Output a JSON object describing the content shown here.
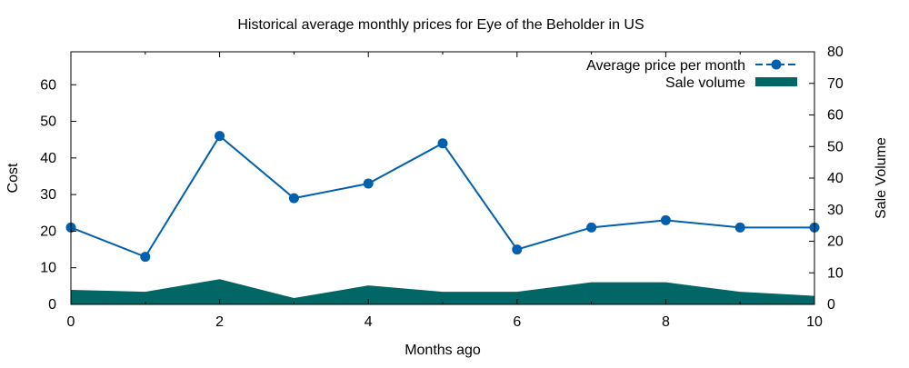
{
  "chart_data": {
    "type": "line",
    "title": "Historical average monthly prices for Eye of the Beholder in US",
    "xlabel": "Months ago",
    "ylabel": "Cost",
    "y2label": "Sale Volume",
    "xlim": [
      0,
      10
    ],
    "ylim": [
      0,
      69
    ],
    "y2lim": [
      0,
      80
    ],
    "x_ticks": [
      0,
      2,
      4,
      6,
      8,
      10
    ],
    "y_ticks": [
      0,
      10,
      20,
      30,
      40,
      50,
      60
    ],
    "y2_ticks": [
      0,
      10,
      20,
      30,
      40,
      50,
      60,
      70,
      80
    ],
    "grid": false,
    "legend_position": "top-right",
    "x": [
      0,
      1,
      2,
      3,
      4,
      5,
      6,
      7,
      8,
      9,
      10
    ],
    "series": [
      {
        "name": "Average price per month",
        "type": "line",
        "axis": "left",
        "color": "#0060ad",
        "values": [
          21,
          13,
          46,
          29,
          33,
          44,
          15,
          21,
          23,
          21,
          21
        ]
      },
      {
        "name": "Sale volume",
        "type": "area",
        "axis": "right",
        "color": "#006666",
        "values": [
          4.6,
          4,
          8,
          2,
          6,
          4,
          4,
          7,
          7,
          4,
          2.7
        ]
      }
    ]
  }
}
